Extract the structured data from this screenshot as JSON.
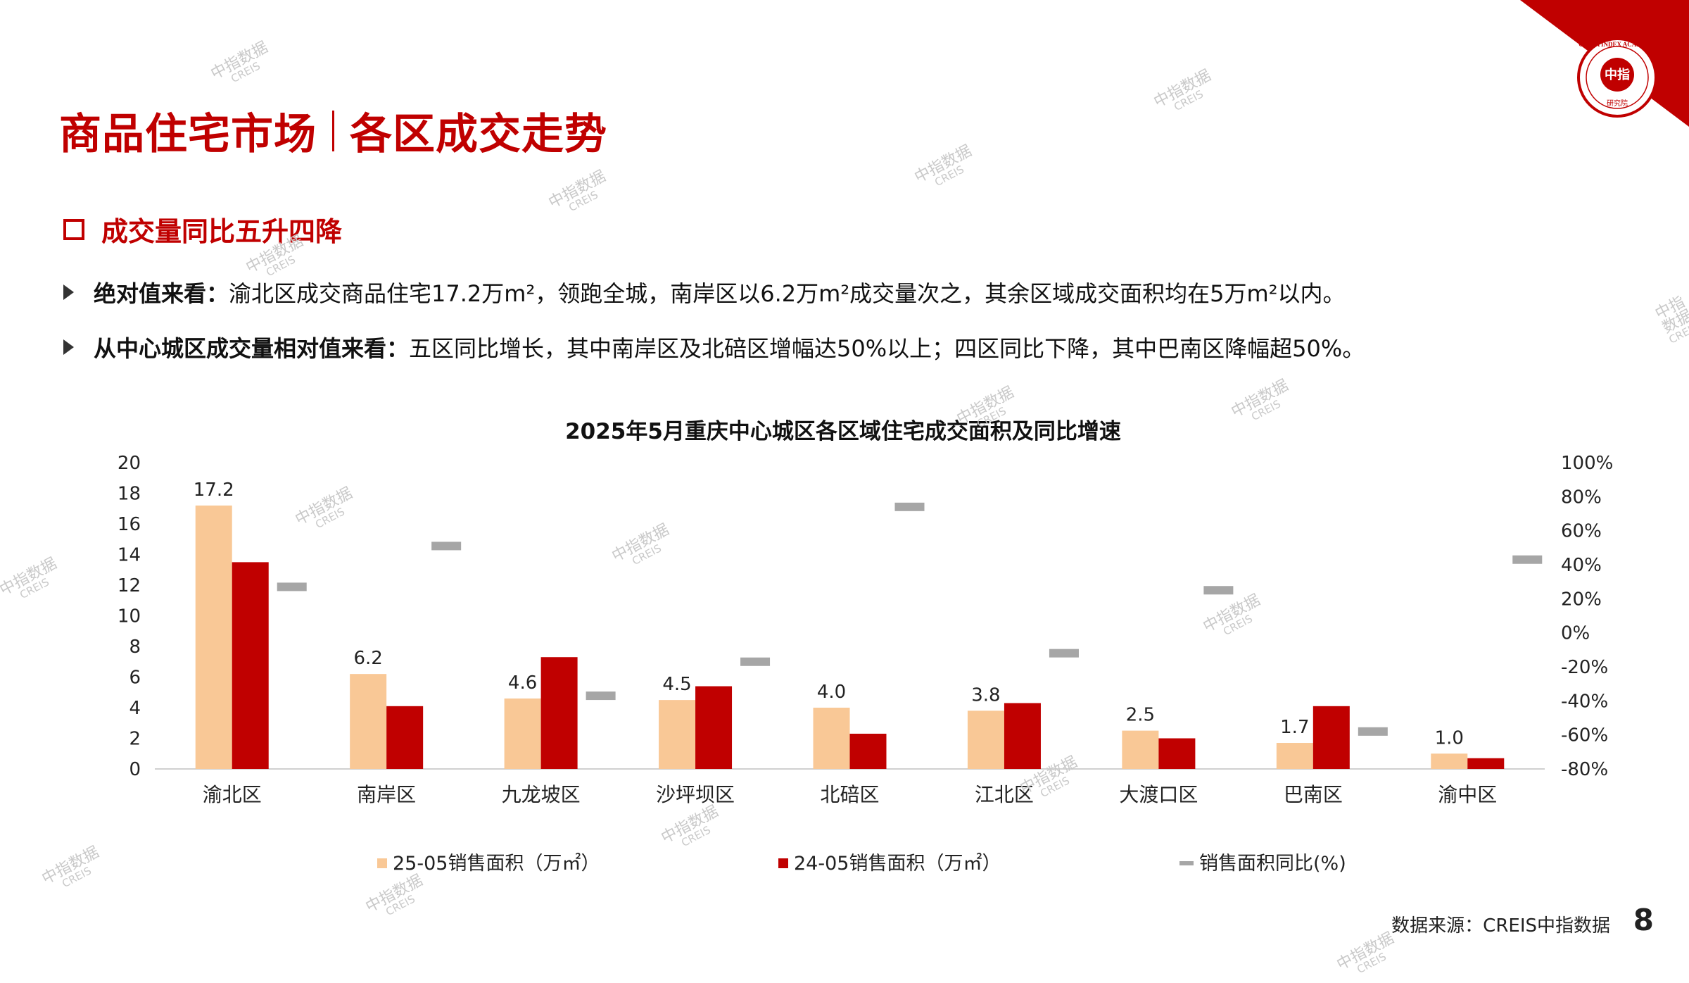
{
  "header": {
    "title_left": "商品住宅市场",
    "title_right": "各区成交走势"
  },
  "logo": {
    "name": "CHINA INDEX ACADEMY",
    "center_chars": "中指",
    "bottom_chars": "研究院"
  },
  "section": {
    "heading": "成交量同比五升四降"
  },
  "bullets": [
    {
      "label": "绝对值来看：",
      "text": "渝北区成交商品住宅17.2万m²，领跑全城，南岸区以6.2万m²成交量次之，其余区域成交面积均在5万m²以内。"
    },
    {
      "label": "从中心城区成交量相对值来看：",
      "text": "五区同比增长，其中南岸区及北碚区增幅达50%以上；四区同比下降，其中巴南区降幅超50%。"
    }
  ],
  "colors": {
    "brand_red": "#c00000",
    "series_2025": "#f9c896",
    "series_2024": "#c00000",
    "yoy_marker": "#a6a6a6"
  },
  "chart_data": {
    "type": "bar",
    "title": "2025年5月重庆中心城区各区域住宅成交面积及同比增速",
    "categories": [
      "渝北区",
      "南岸区",
      "九龙坡区",
      "沙坪坝区",
      "北碚区",
      "江北区",
      "大渡口区",
      "巴南区",
      "渝中区"
    ],
    "series": [
      {
        "name": "25-05销售面积（万㎡）",
        "type": "bar",
        "axis": "left",
        "values": [
          17.2,
          6.2,
          4.6,
          4.5,
          4.0,
          3.8,
          2.5,
          1.7,
          1.0
        ],
        "labels_shown": true
      },
      {
        "name": "24-05销售面积（万㎡）",
        "type": "bar",
        "axis": "left",
        "values": [
          13.5,
          4.1,
          7.3,
          5.4,
          2.3,
          4.3,
          2.0,
          4.1,
          0.7
        ],
        "labels_shown": false
      },
      {
        "name": "销售面积同比(%)",
        "type": "marker",
        "axis": "right",
        "values": [
          27,
          51,
          -37,
          -17,
          74,
          -12,
          25,
          -58,
          43
        ]
      }
    ],
    "y_left": {
      "min": 0,
      "max": 20,
      "step": 2,
      "ticks": [
        "0",
        "2",
        "4",
        "6",
        "8",
        "10",
        "12",
        "14",
        "16",
        "18",
        "20"
      ]
    },
    "y_right": {
      "min": -80,
      "max": 100,
      "step": 20,
      "ticks": [
        "-80%",
        "-60%",
        "-40%",
        "-20%",
        "0%",
        "20%",
        "40%",
        "60%",
        "80%",
        "100%"
      ]
    },
    "grid": false,
    "legend_position": "bottom"
  },
  "footer": {
    "source": "数据来源：CREIS中指数据",
    "page_number": "8"
  },
  "watermark": {
    "cn": "中指数据",
    "en": "CREIS"
  }
}
